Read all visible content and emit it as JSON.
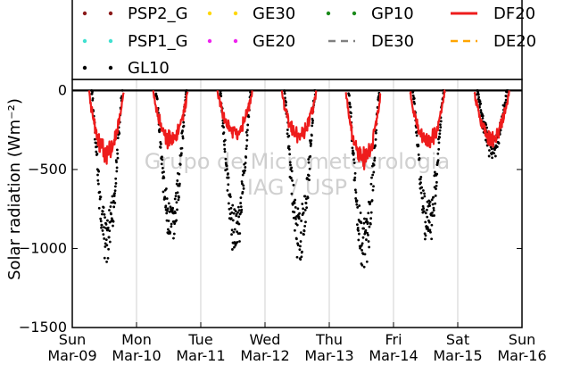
{
  "chart_data": {
    "type": "scatter",
    "ylabel": "Solar radiation (Wm⁻²)",
    "xlabel": "",
    "ylim": [
      -1500,
      70
    ],
    "xlim": [
      0,
      7
    ],
    "yticks": [
      0,
      -500,
      -1000,
      -1500
    ],
    "xticks": [
      {
        "day": "Sun",
        "date": "Mar-09"
      },
      {
        "day": "Mon",
        "date": "Mar-10"
      },
      {
        "day": "Tue",
        "date": "Mar-11"
      },
      {
        "day": "Wed",
        "date": "Mar-12"
      },
      {
        "day": "Thu",
        "date": "Mar-13"
      },
      {
        "day": "Fri",
        "date": "Mar-14"
      },
      {
        "day": "Sat",
        "date": "Mar-15"
      },
      {
        "day": "Sun",
        "date": "Mar-16"
      }
    ],
    "grid": "vertical",
    "legend_position": "top",
    "watermark": [
      "Grupo de Micrometeorologia",
      "IAG / USP"
    ],
    "series": [
      {
        "name": "PSP2_G",
        "style": "dotted",
        "color": "#8b1a1a",
        "values": []
      },
      {
        "name": "GE30",
        "style": "dotted",
        "color": "#ffd700",
        "values": []
      },
      {
        "name": "GP10",
        "style": "dotted",
        "color": "#1a8a1a",
        "values": []
      },
      {
        "name": "DF20",
        "style": "solid",
        "color": "#ee1c1c",
        "values": [
          {
            "day": 0,
            "peak": -420
          },
          {
            "day": 1,
            "peak": -340
          },
          {
            "day": 2,
            "peak": -290
          },
          {
            "day": 3,
            "peak": -310
          },
          {
            "day": 4,
            "peak": -470
          },
          {
            "day": 5,
            "peak": -350
          },
          {
            "day": 6,
            "peak": -330
          }
        ]
      },
      {
        "name": "PSP1_G",
        "style": "dotted",
        "color": "#40e0d0",
        "values": []
      },
      {
        "name": "GE20",
        "style": "dotted",
        "color": "#ee22ee",
        "values": []
      },
      {
        "name": "DE30",
        "style": "dashed",
        "color": "#808080",
        "values": []
      },
      {
        "name": "DE20",
        "style": "dashed",
        "color": "#ffa500",
        "values": []
      },
      {
        "name": "GL10",
        "style": "dotted",
        "color": "#000000",
        "values": [
          {
            "day": 0,
            "peak": -1060
          },
          {
            "day": 1,
            "peak": -960
          },
          {
            "day": 2,
            "peak": -990
          },
          {
            "day": 3,
            "peak": -1020
          },
          {
            "day": 4,
            "peak": -1100
          },
          {
            "day": 5,
            "peak": -930
          },
          {
            "day": 6,
            "peak": -400
          }
        ]
      }
    ]
  }
}
